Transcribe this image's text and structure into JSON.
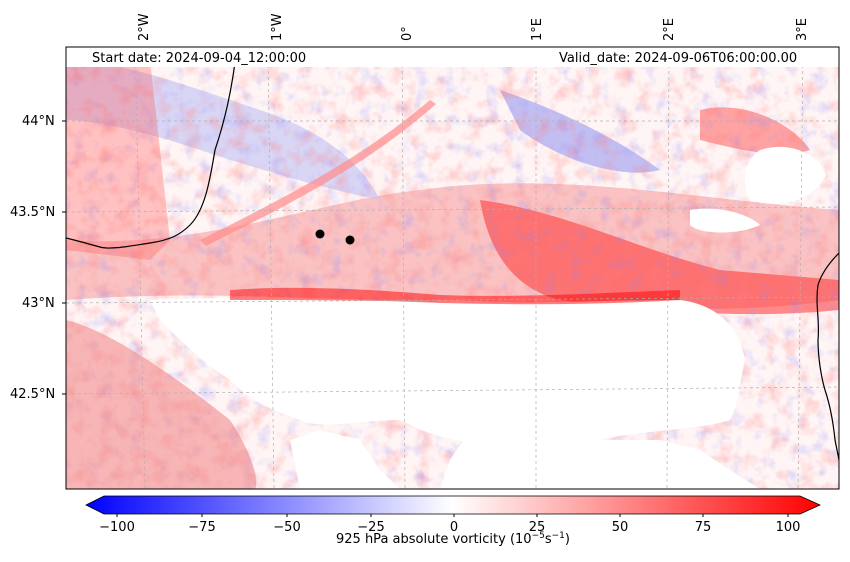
{
  "header": {
    "start_date": "Start date: 2024-09-04_12:00:00",
    "valid_date": "Valid_date: 2024-09-06T06:00:00.00"
  },
  "axes": {
    "longitude_labels": [
      "2°W",
      "1°W",
      "0°",
      "1°E",
      "2°E",
      "3°E"
    ],
    "latitude_labels": [
      "44°N",
      "43.5°N",
      "43°N",
      "42.5°N"
    ]
  },
  "colorbar": {
    "ticks": [
      "−100",
      "−75",
      "−50",
      "−25",
      "0",
      "25",
      "50",
      "75",
      "100"
    ],
    "title_main": "925 hPa absolute vorticity (10",
    "title_exp1": "−5",
    "title_mid": "s",
    "title_exp2": "−1",
    "title_end": ")",
    "colormap": "bwr",
    "min_color": "#0000ff",
    "mid_color": "#ffffff",
    "max_color": "#ff0000"
  },
  "markers": [
    "black-dot",
    "black-dot"
  ]
}
